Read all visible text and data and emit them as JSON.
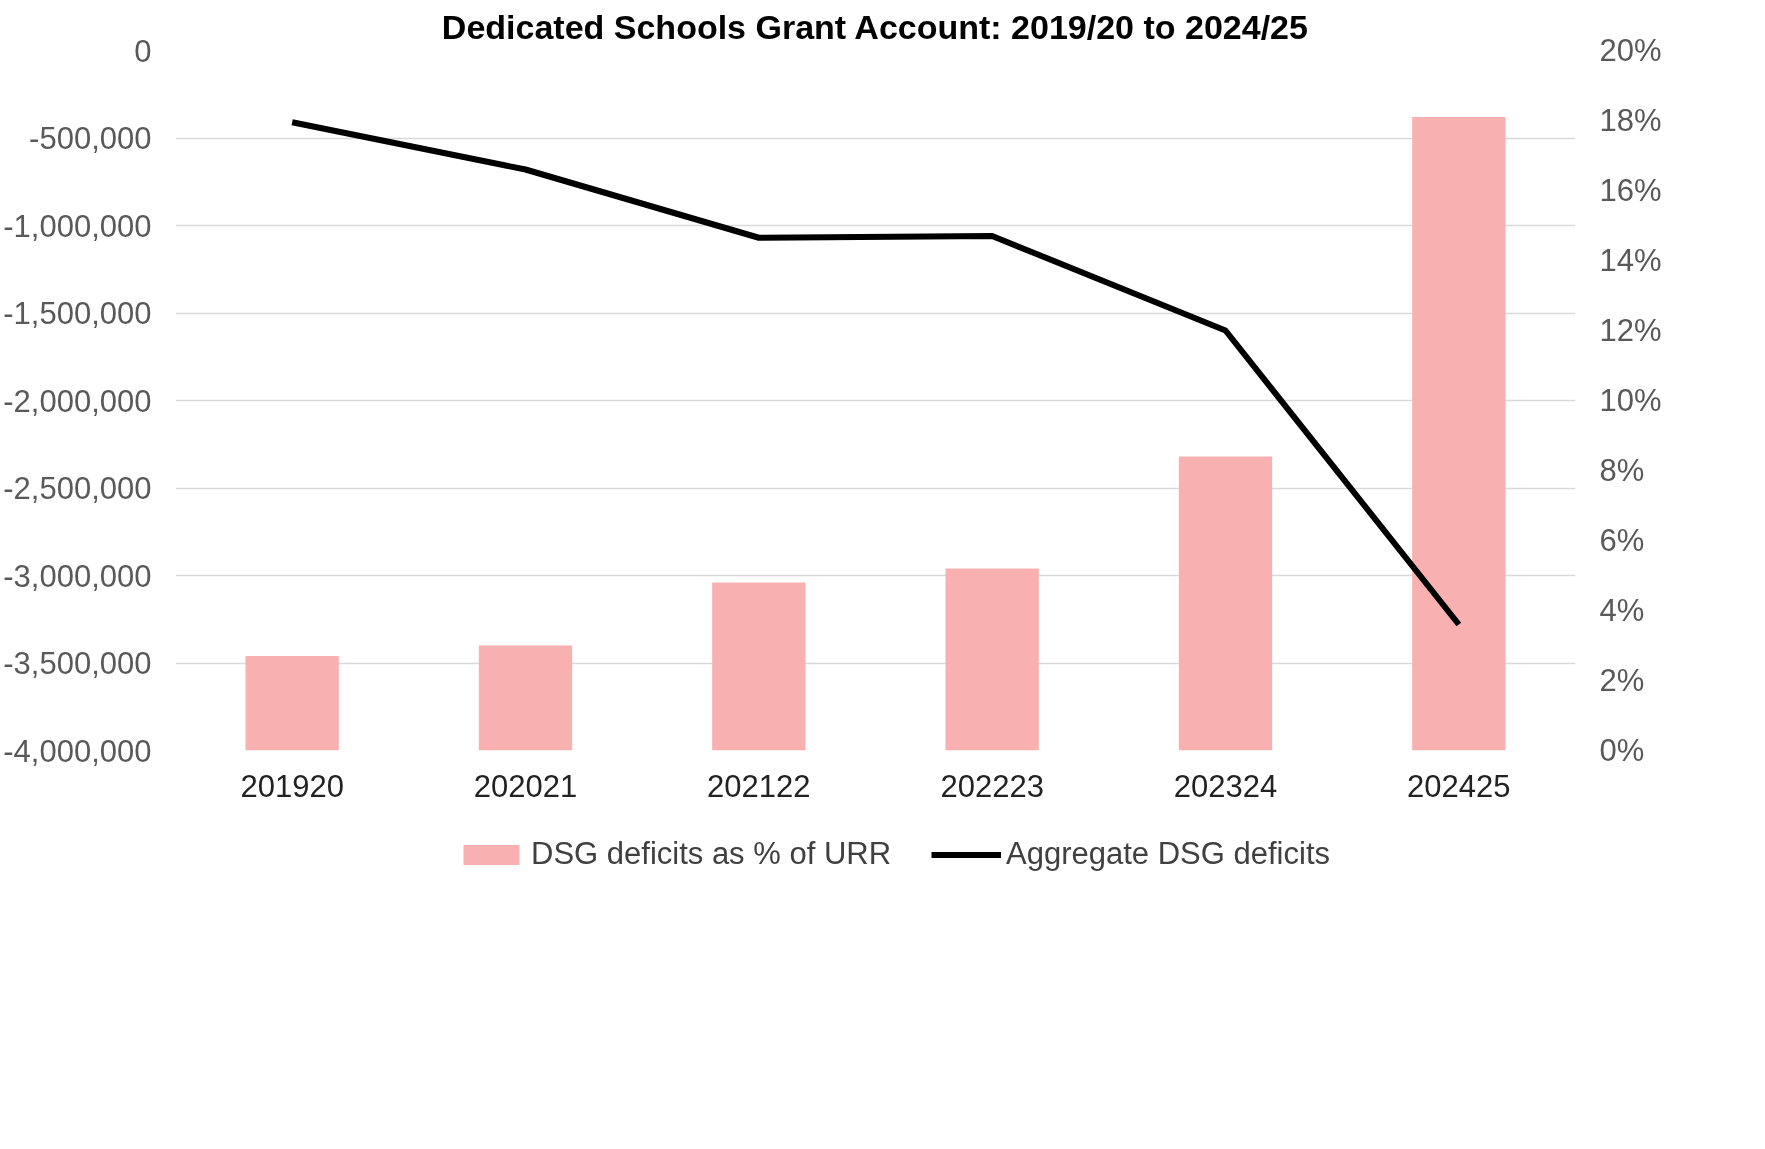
{
  "chart_data": {
    "type": "bar",
    "title": "Dedicated Schools Grant Account: 2019/20 to 2024/25",
    "categories": [
      "201920",
      "202021",
      "202122",
      "202223",
      "202324",
      "202425"
    ],
    "series": [
      {
        "name": "DSG deficits as % of URR",
        "axis": "y2",
        "color": "#f9b0b0",
        "values": [
          2.7,
          3.0,
          4.8,
          5.2,
          8.4,
          18.1
        ]
      },
      {
        "name": "Aggregate DSG deficits",
        "type": "line",
        "color": "#000000",
        "values": [
          -410000,
          -680000,
          -1070000,
          -1060000,
          -1600000,
          -3280000
        ]
      }
    ],
    "ylim": [
      -4000000,
      0
    ],
    "yticks": [
      {
        "value": 0,
        "label": "0"
      },
      {
        "value": -500000,
        "label": "-500,000"
      },
      {
        "value": -1000000,
        "label": "-1,000,000"
      },
      {
        "value": -1500000,
        "label": "-1,500,000"
      },
      {
        "value": -2000000,
        "label": "-2,000,000"
      },
      {
        "value": -2500000,
        "label": "-2,500,000"
      },
      {
        "value": -3000000,
        "label": "-3,000,000"
      },
      {
        "value": -3500000,
        "label": "-3,500,000"
      },
      {
        "value": -4000000,
        "label": "-4,000,000"
      }
    ],
    "y2lim": [
      0,
      20
    ],
    "y2ticks": [
      {
        "value": 0,
        "label": "0%"
      },
      {
        "value": 2,
        "label": "2%"
      },
      {
        "value": 4,
        "label": "4%"
      },
      {
        "value": 6,
        "label": "6%"
      },
      {
        "value": 8,
        "label": "8%"
      },
      {
        "value": 10,
        "label": "10%"
      },
      {
        "value": 12,
        "label": "12%"
      },
      {
        "value": 14,
        "label": "14%"
      },
      {
        "value": 16,
        "label": "16%"
      },
      {
        "value": 18,
        "label": "18%"
      },
      {
        "value": 20,
        "label": "20%"
      }
    ],
    "grid": "y",
    "legend": "bottom",
    "line_style": "solid",
    "marker": "none"
  }
}
